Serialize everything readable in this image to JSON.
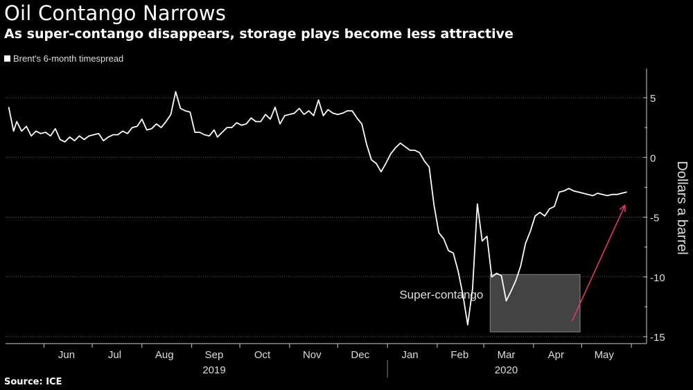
{
  "title": "Oil Contango Narrows",
  "subtitle": "As super-contango disappears, storage plays become less attractive",
  "source": "Source: ICE",
  "colors": {
    "line": "#ffffff",
    "arrow": "#e8307a",
    "box_fill": "#5a5a5a",
    "box_stroke": "#8a8a8a",
    "grid": "#5a5a5a"
  },
  "chart_data": {
    "type": "line",
    "title": "Oil Contango Narrows",
    "subtitle": "As super-contango disappears, storage plays become less attractive",
    "ylabel": "Dollars a barrel",
    "xlabel": "",
    "ylim": [
      -15,
      7
    ],
    "yticks": [
      5,
      0,
      -5,
      -10,
      -15
    ],
    "grid": "horizontal dotted",
    "legend_placement": "top-left",
    "month_labels": [
      "Jun",
      "Jul",
      "Aug",
      "Sep",
      "Oct",
      "Nov",
      "Dec",
      "Jan",
      "Feb",
      "Mar",
      "Apr",
      "May"
    ],
    "year_labels": [
      {
        "label": "2019",
        "month": "Sep"
      },
      {
        "label": "2020",
        "month": "Mar"
      }
    ],
    "annotation": {
      "label": "Super-contango",
      "x_from": "2020-03-05",
      "x_to": "2020-04-30",
      "y_from": -14.6,
      "y_to": -9.8
    },
    "arrow": {
      "from": {
        "x": "2020-04-25",
        "y": -13.7
      },
      "to": {
        "x": "2020-05-28",
        "y": -4.0
      }
    },
    "series": [
      {
        "name": "Brent's 6-month timespread",
        "x": [
          "2019-05-10",
          "2019-05-13",
          "2019-05-15",
          "2019-05-18",
          "2019-05-21",
          "2019-05-24",
          "2019-05-27",
          "2019-05-30",
          "2019-06-02",
          "2019-06-05",
          "2019-06-08",
          "2019-06-11",
          "2019-06-14",
          "2019-06-17",
          "2019-06-20",
          "2019-06-23",
          "2019-06-26",
          "2019-06-29",
          "2019-07-02",
          "2019-07-05",
          "2019-07-08",
          "2019-07-11",
          "2019-07-14",
          "2019-07-17",
          "2019-07-20",
          "2019-07-23",
          "2019-07-26",
          "2019-07-29",
          "2019-08-01",
          "2019-08-04",
          "2019-08-07",
          "2019-08-10",
          "2019-08-13",
          "2019-08-16",
          "2019-08-19",
          "2019-08-22",
          "2019-08-25",
          "2019-08-28",
          "2019-08-31",
          "2019-09-03",
          "2019-09-06",
          "2019-09-09",
          "2019-09-12",
          "2019-09-15",
          "2019-09-16",
          "2019-09-17",
          "2019-09-20",
          "2019-09-23",
          "2019-09-26",
          "2019-09-29",
          "2019-10-02",
          "2019-10-05",
          "2019-10-08",
          "2019-10-11",
          "2019-10-14",
          "2019-10-17",
          "2019-10-20",
          "2019-10-23",
          "2019-10-26",
          "2019-10-29",
          "2019-11-01",
          "2019-11-04",
          "2019-11-07",
          "2019-11-10",
          "2019-11-13",
          "2019-11-16",
          "2019-11-19",
          "2019-11-22",
          "2019-11-25",
          "2019-11-28",
          "2019-12-01",
          "2019-12-04",
          "2019-12-07",
          "2019-12-10",
          "2019-12-13",
          "2019-12-16",
          "2019-12-19",
          "2019-12-22",
          "2019-12-25",
          "2019-12-28",
          "2019-12-31",
          "2020-01-03",
          "2020-01-06",
          "2020-01-09",
          "2020-01-12",
          "2020-01-15",
          "2020-01-18",
          "2020-01-21",
          "2020-01-24",
          "2020-01-27",
          "2020-01-30",
          "2020-02-02",
          "2020-02-05",
          "2020-02-08",
          "2020-02-11",
          "2020-02-14",
          "2020-02-17",
          "2020-02-20",
          "2020-02-23",
          "2020-02-26",
          "2020-02-29",
          "2020-03-03",
          "2020-03-06",
          "2020-03-09",
          "2020-03-12",
          "2020-03-15",
          "2020-03-18",
          "2020-03-21",
          "2020-03-24",
          "2020-03-27",
          "2020-03-30",
          "2020-04-02",
          "2020-04-05",
          "2020-04-08",
          "2020-04-11",
          "2020-04-14",
          "2020-04-17",
          "2020-04-20",
          "2020-04-23",
          "2020-04-26",
          "2020-04-29",
          "2020-05-02",
          "2020-05-05",
          "2020-05-08",
          "2020-05-11",
          "2020-05-14",
          "2020-05-17",
          "2020-05-20",
          "2020-05-23",
          "2020-05-26",
          "2020-05-29"
        ],
        "y": [
          4.2,
          2.2,
          3.0,
          2.2,
          2.6,
          1.8,
          2.2,
          2.0,
          2.1,
          1.8,
          2.4,
          1.5,
          1.3,
          1.7,
          1.4,
          1.8,
          1.5,
          1.8,
          1.9,
          2.0,
          1.4,
          1.7,
          1.9,
          1.9,
          2.2,
          2.0,
          2.5,
          2.6,
          3.2,
          2.3,
          2.4,
          2.8,
          2.5,
          3.0,
          3.6,
          5.5,
          4.1,
          3.9,
          3.8,
          2.1,
          2.1,
          1.9,
          1.8,
          2.3,
          2.0,
          1.7,
          2.1,
          2.5,
          2.5,
          2.9,
          2.7,
          2.8,
          3.3,
          3.0,
          3.0,
          3.6,
          3.2,
          4.2,
          2.8,
          3.5,
          3.6,
          3.7,
          4.1,
          3.6,
          3.9,
          3.5,
          4.8,
          3.5,
          4.0,
          3.7,
          3.6,
          3.7,
          3.9,
          3.9,
          3.3,
          2.8,
          1.1,
          -0.2,
          -0.5,
          -1.2,
          -0.5,
          0.3,
          0.8,
          1.2,
          0.9,
          0.6,
          0.6,
          0.4,
          -0.3,
          -0.8,
          -4.0,
          -6.3,
          -6.8,
          -7.8,
          -8.0,
          -9.5,
          -11.5,
          -14.0,
          -11.0,
          -3.9,
          -7.0,
          -6.6,
          -10.0,
          -9.7,
          -9.9,
          -12.0,
          -11.2,
          -10.3,
          -9.1,
          -7.2,
          -6.2,
          -4.9,
          -4.6,
          -4.9,
          -4.3,
          -4.1,
          -2.9,
          -2.8,
          -2.6,
          -2.8,
          -2.9,
          -3.0,
          -3.1,
          -3.2,
          -3.0,
          -3.1,
          -3.2,
          -3.1,
          -3.1,
          -3.0,
          -2.9
        ]
      }
    ]
  }
}
